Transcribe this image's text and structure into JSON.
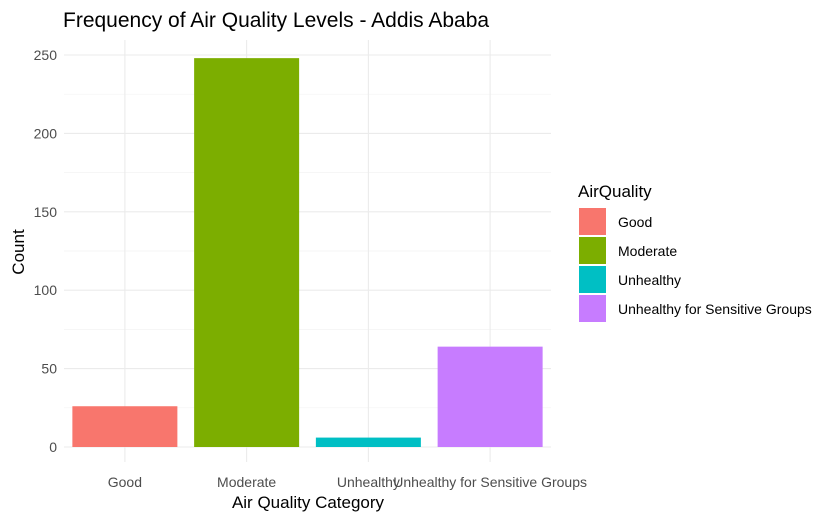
{
  "chart_data": {
    "type": "bar",
    "title": "Frequency of Air Quality Levels - Addis Ababa",
    "xlabel": "Air Quality Category",
    "ylabel": "Count",
    "categories": [
      "Good",
      "Moderate",
      "Unhealthy",
      "Unhealthy for Sensitive Groups"
    ],
    "values": [
      26,
      248,
      6,
      64
    ],
    "colors": [
      "#F8766D",
      "#7CAE00",
      "#00BFC4",
      "#C77CFF"
    ],
    "ylim": [
      0,
      260
    ],
    "yticks": [
      0,
      50,
      100,
      150,
      200,
      250
    ],
    "yticks_minor": [
      25,
      75,
      125,
      175,
      225
    ],
    "grid": true,
    "legend": {
      "title": "AirQuality",
      "placement": "right",
      "entries": [
        "Good",
        "Moderate",
        "Unhealthy",
        "Unhealthy for Sensitive Groups"
      ]
    }
  }
}
